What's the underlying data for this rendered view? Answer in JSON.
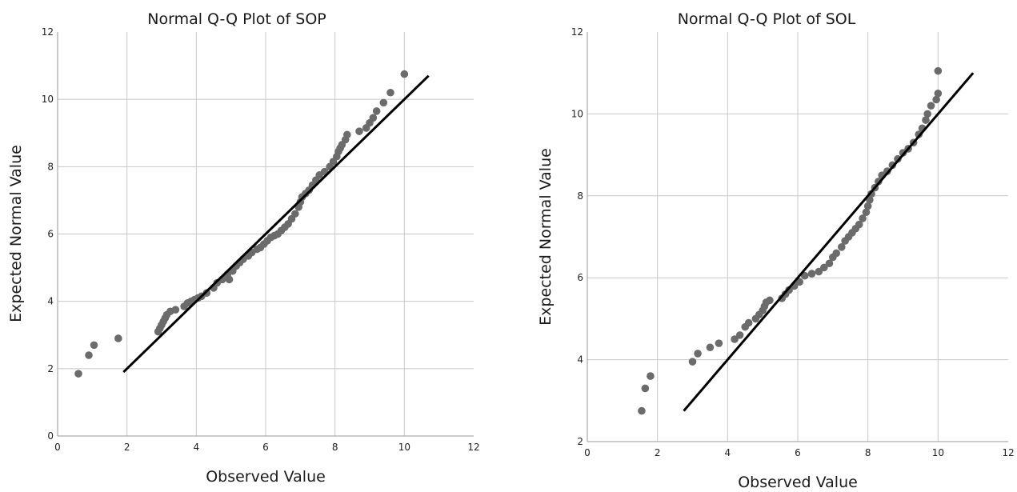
{
  "chart_data": [
    {
      "type": "scatter",
      "title": "Normal Q-Q Plot of SOP",
      "xlabel": "Observed Value",
      "ylabel": "Expected Normal Value",
      "xlim": [
        0,
        12
      ],
      "ylim": [
        0,
        12
      ],
      "xticks": [
        "0",
        "2",
        "4",
        "6",
        "8",
        "10",
        "12"
      ],
      "yticks": [
        "0",
        "2",
        "4",
        "6",
        "8",
        "10",
        "12"
      ],
      "grid": true,
      "reference_line": [
        [
          1.9,
          1.9
        ],
        [
          10.7,
          10.7
        ]
      ],
      "points": [
        [
          0.6,
          1.85
        ],
        [
          0.9,
          2.4
        ],
        [
          1.05,
          2.7
        ],
        [
          1.75,
          2.9
        ],
        [
          2.9,
          3.1
        ],
        [
          2.95,
          3.2
        ],
        [
          3.0,
          3.3
        ],
        [
          3.05,
          3.4
        ],
        [
          3.1,
          3.5
        ],
        [
          3.15,
          3.6
        ],
        [
          3.25,
          3.7
        ],
        [
          3.4,
          3.75
        ],
        [
          3.65,
          3.85
        ],
        [
          3.75,
          3.95
        ],
        [
          3.85,
          4.0
        ],
        [
          3.95,
          4.05
        ],
        [
          4.05,
          4.1
        ],
        [
          4.15,
          4.15
        ],
        [
          4.3,
          4.25
        ],
        [
          4.5,
          4.4
        ],
        [
          4.6,
          4.55
        ],
        [
          4.75,
          4.65
        ],
        [
          4.9,
          4.8
        ],
        [
          4.95,
          4.65
        ],
        [
          5.05,
          4.9
        ],
        [
          5.15,
          5.05
        ],
        [
          5.25,
          5.15
        ],
        [
          5.35,
          5.25
        ],
        [
          5.5,
          5.35
        ],
        [
          5.6,
          5.45
        ],
        [
          5.75,
          5.55
        ],
        [
          5.85,
          5.6
        ],
        [
          5.95,
          5.7
        ],
        [
          6.05,
          5.8
        ],
        [
          6.15,
          5.9
        ],
        [
          6.25,
          5.95
        ],
        [
          6.35,
          6.0
        ],
        [
          6.45,
          6.1
        ],
        [
          6.55,
          6.2
        ],
        [
          6.65,
          6.3
        ],
        [
          6.75,
          6.45
        ],
        [
          6.85,
          6.6
        ],
        [
          6.95,
          6.8
        ],
        [
          7.0,
          6.95
        ],
        [
          7.05,
          7.1
        ],
        [
          7.15,
          7.2
        ],
        [
          7.25,
          7.3
        ],
        [
          7.35,
          7.45
        ],
        [
          7.45,
          7.6
        ],
        [
          7.55,
          7.75
        ],
        [
          7.7,
          7.85
        ],
        [
          7.85,
          8.0
        ],
        [
          7.95,
          8.15
        ],
        [
          8.05,
          8.3
        ],
        [
          8.1,
          8.45
        ],
        [
          8.15,
          8.55
        ],
        [
          8.2,
          8.65
        ],
        [
          8.3,
          8.8
        ],
        [
          8.35,
          8.95
        ],
        [
          8.7,
          9.05
        ],
        [
          8.9,
          9.15
        ],
        [
          9.0,
          9.3
        ],
        [
          9.1,
          9.45
        ],
        [
          9.2,
          9.65
        ],
        [
          9.4,
          9.9
        ],
        [
          9.6,
          10.2
        ],
        [
          10.0,
          10.75
        ]
      ]
    },
    {
      "type": "scatter",
      "title": "Normal Q-Q Plot of SOL",
      "xlabel": "Observed Value",
      "ylabel": "Expected Normal Value",
      "xlim": [
        0,
        12
      ],
      "ylim": [
        2,
        12
      ],
      "xticks": [
        "0",
        "2",
        "4",
        "6",
        "8",
        "10",
        "12"
      ],
      "yticks": [
        "2",
        "4",
        "6",
        "8",
        "10",
        "12"
      ],
      "grid": true,
      "reference_line": [
        [
          2.75,
          2.75
        ],
        [
          11.0,
          11.0
        ]
      ],
      "points": [
        [
          1.55,
          2.75
        ],
        [
          1.65,
          3.3
        ],
        [
          1.8,
          3.6
        ],
        [
          3.0,
          3.95
        ],
        [
          3.15,
          4.15
        ],
        [
          3.5,
          4.3
        ],
        [
          3.75,
          4.4
        ],
        [
          4.2,
          4.5
        ],
        [
          4.35,
          4.6
        ],
        [
          4.5,
          4.8
        ],
        [
          4.6,
          4.9
        ],
        [
          4.8,
          5.0
        ],
        [
          4.9,
          5.1
        ],
        [
          5.0,
          5.2
        ],
        [
          5.05,
          5.3
        ],
        [
          5.1,
          5.4
        ],
        [
          5.2,
          5.45
        ],
        [
          5.55,
          5.5
        ],
        [
          5.65,
          5.6
        ],
        [
          5.75,
          5.7
        ],
        [
          5.9,
          5.8
        ],
        [
          6.05,
          5.9
        ],
        [
          6.2,
          6.05
        ],
        [
          6.4,
          6.1
        ],
        [
          6.6,
          6.15
        ],
        [
          6.75,
          6.25
        ],
        [
          6.9,
          6.35
        ],
        [
          7.0,
          6.5
        ],
        [
          7.1,
          6.6
        ],
        [
          7.25,
          6.75
        ],
        [
          7.35,
          6.9
        ],
        [
          7.45,
          7.0
        ],
        [
          7.55,
          7.1
        ],
        [
          7.65,
          7.2
        ],
        [
          7.75,
          7.3
        ],
        [
          7.85,
          7.45
        ],
        [
          7.95,
          7.6
        ],
        [
          8.0,
          7.75
        ],
        [
          8.05,
          7.9
        ],
        [
          8.1,
          8.05
        ],
        [
          8.2,
          8.2
        ],
        [
          8.3,
          8.35
        ],
        [
          8.4,
          8.5
        ],
        [
          8.55,
          8.6
        ],
        [
          8.7,
          8.75
        ],
        [
          8.85,
          8.9
        ],
        [
          9.0,
          9.05
        ],
        [
          9.15,
          9.15
        ],
        [
          9.3,
          9.3
        ],
        [
          9.45,
          9.5
        ],
        [
          9.55,
          9.65
        ],
        [
          9.65,
          9.85
        ],
        [
          9.7,
          10.0
        ],
        [
          9.8,
          10.2
        ],
        [
          9.95,
          10.35
        ],
        [
          10.0,
          10.5
        ],
        [
          10.0,
          11.05
        ]
      ]
    }
  ]
}
